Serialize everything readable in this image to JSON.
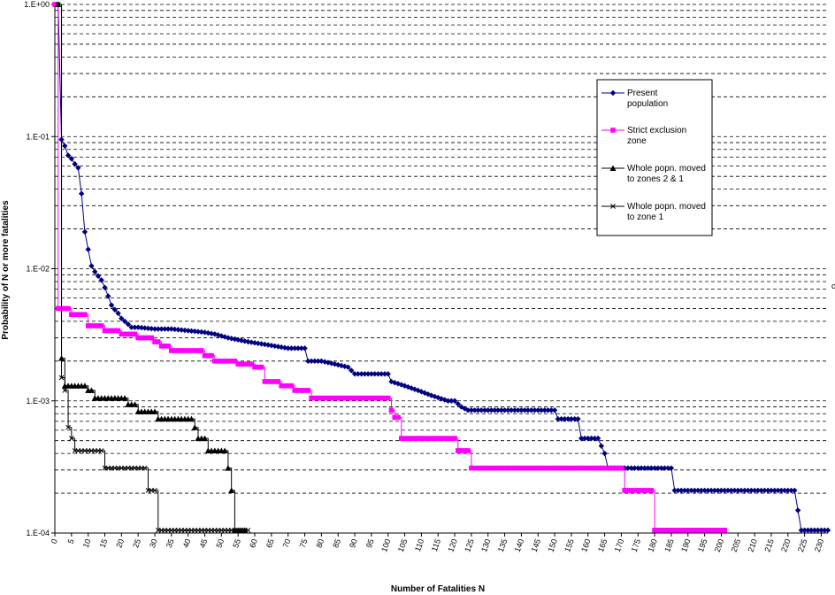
{
  "chart_data": {
    "type": "line",
    "title": "",
    "xlabel": "Number of Fatalities N",
    "ylabel": "Probability of N or more fatalities",
    "xlim": [
      0,
      232
    ],
    "ylim": [
      0.0001,
      1
    ],
    "yscale": "log",
    "grid": "horizontal dashed lines at each minor decade step",
    "legend_position": "right",
    "x_ticks": [
      0,
      5,
      10,
      15,
      20,
      25,
      30,
      35,
      40,
      45,
      50,
      55,
      60,
      65,
      70,
      75,
      80,
      85,
      90,
      95,
      100,
      105,
      110,
      115,
      120,
      125,
      130,
      135,
      140,
      145,
      150,
      155,
      160,
      165,
      170,
      175,
      180,
      185,
      190,
      195,
      200,
      205,
      210,
      215,
      220,
      225,
      230
    ],
    "y_ticks": [
      1,
      0.1,
      0.01,
      0.001,
      0.0001
    ],
    "y_tick_labels": [
      "1.E+00",
      "1.E-01",
      "1.E-02",
      "1.E-03",
      "1.E-04"
    ],
    "series": [
      {
        "name": "Present population",
        "color": "#000080",
        "marker": "diamond",
        "step": false,
        "points": [
          [
            1,
            1.0
          ],
          [
            2,
            0.095
          ],
          [
            3,
            0.085
          ],
          [
            4,
            0.072
          ],
          [
            5,
            0.068
          ],
          [
            6,
            0.062
          ],
          [
            7,
            0.058
          ],
          [
            8,
            0.037
          ],
          [
            9,
            0.019
          ],
          [
            10,
            0.014
          ],
          [
            11,
            0.0105
          ],
          [
            12,
            0.0095
          ],
          [
            13,
            0.0088
          ],
          [
            14,
            0.0082
          ],
          [
            15,
            0.0072
          ],
          [
            16,
            0.0062
          ],
          [
            17,
            0.0053
          ],
          [
            18,
            0.0049
          ],
          [
            19,
            0.0046
          ],
          [
            20,
            0.0042
          ],
          [
            21,
            0.004
          ],
          [
            22,
            0.0038
          ],
          [
            23,
            0.0036
          ],
          [
            25,
            0.0036
          ],
          [
            30,
            0.0035
          ],
          [
            35,
            0.0035
          ],
          [
            40,
            0.0034
          ],
          [
            45,
            0.0033
          ],
          [
            48,
            0.0032
          ],
          [
            50,
            0.0031
          ],
          [
            52,
            0.003
          ],
          [
            55,
            0.0029
          ],
          [
            58,
            0.0028
          ],
          [
            62,
            0.0027
          ],
          [
            66,
            0.0026
          ],
          [
            70,
            0.0025
          ],
          [
            75,
            0.0025
          ],
          [
            76,
            0.002
          ],
          [
            80,
            0.002
          ],
          [
            84,
            0.0019
          ],
          [
            88,
            0.0018
          ],
          [
            90,
            0.0016
          ],
          [
            95,
            0.0016
          ],
          [
            100,
            0.0016
          ],
          [
            101,
            0.0014
          ],
          [
            105,
            0.0013
          ],
          [
            109,
            0.0012
          ],
          [
            113,
            0.0011
          ],
          [
            118,
            0.001
          ],
          [
            120,
            0.001
          ],
          [
            122,
            0.0009
          ],
          [
            124,
            0.00085
          ],
          [
            130,
            0.00085
          ],
          [
            140,
            0.00085
          ],
          [
            150,
            0.00085
          ],
          [
            151,
            0.00073
          ],
          [
            157,
            0.00073
          ],
          [
            158,
            0.00052
          ],
          [
            163,
            0.00052
          ],
          [
            165,
            0.0004
          ],
          [
            166,
            0.00031
          ],
          [
            170,
            0.00031
          ],
          [
            175,
            0.00031
          ],
          [
            185,
            0.00031
          ],
          [
            186,
            0.00021
          ],
          [
            190,
            0.00021
          ],
          [
            200,
            0.00021
          ],
          [
            210,
            0.00021
          ],
          [
            222,
            0.00021
          ],
          [
            224,
            0.000105
          ],
          [
            232,
            0.000105
          ]
        ]
      },
      {
        "name": "Strict exclusion zone",
        "color": "#FF00FF",
        "marker": "square",
        "step": true,
        "points": [
          [
            0,
            1.0
          ],
          [
            1,
            0.005
          ],
          [
            5,
            0.0045
          ],
          [
            10,
            0.0037
          ],
          [
            15,
            0.0034
          ],
          [
            20,
            0.0032
          ],
          [
            25,
            0.003
          ],
          [
            30,
            0.0028
          ],
          [
            32,
            0.0026
          ],
          [
            35,
            0.0024
          ],
          [
            45,
            0.0022
          ],
          [
            48,
            0.002
          ],
          [
            55,
            0.0019
          ],
          [
            60,
            0.0018
          ],
          [
            63,
            0.0014
          ],
          [
            68,
            0.0013
          ],
          [
            72,
            0.0012
          ],
          [
            77,
            0.00105
          ],
          [
            100,
            0.00105
          ],
          [
            101,
            0.00085
          ],
          [
            102,
            0.00075
          ],
          [
            104,
            0.00052
          ],
          [
            115,
            0.00052
          ],
          [
            121,
            0.00042
          ],
          [
            125,
            0.00031
          ],
          [
            170,
            0.00031
          ],
          [
            171,
            0.00021
          ],
          [
            179,
            0.00021
          ],
          [
            180,
            0.000105
          ],
          [
            201,
            0.000105
          ]
        ]
      },
      {
        "name": "Whole popn. moved to zones 2 & 1",
        "color": "#000000",
        "marker": "triangle",
        "step": true,
        "points": [
          [
            1,
            1.0
          ],
          [
            2,
            0.0021
          ],
          [
            3,
            0.0013
          ],
          [
            10,
            0.0012
          ],
          [
            12,
            0.00105
          ],
          [
            20,
            0.00105
          ],
          [
            22,
            0.00094
          ],
          [
            25,
            0.00083
          ],
          [
            30,
            0.00083
          ],
          [
            31,
            0.00073
          ],
          [
            41,
            0.00073
          ],
          [
            42,
            0.00063
          ],
          [
            43,
            0.00052
          ],
          [
            46,
            0.00042
          ],
          [
            51,
            0.00042
          ],
          [
            52,
            0.00031
          ],
          [
            53,
            0.00021
          ],
          [
            54,
            0.000105
          ],
          [
            57,
            0.000105
          ]
        ]
      },
      {
        "name": "Whole popn. moved to zone 1",
        "color": "#000000",
        "marker": "x",
        "step": true,
        "points": [
          [
            1,
            1.0
          ],
          [
            2,
            0.0015
          ],
          [
            3,
            0.0012
          ],
          [
            4,
            0.00063
          ],
          [
            5,
            0.00052
          ],
          [
            6,
            0.00042
          ],
          [
            14,
            0.00042
          ],
          [
            15,
            0.00031
          ],
          [
            27,
            0.00031
          ],
          [
            28,
            0.00021
          ],
          [
            30,
            0.00021
          ],
          [
            31,
            0.000105
          ],
          [
            58,
            0.000105
          ]
        ]
      }
    ]
  }
}
